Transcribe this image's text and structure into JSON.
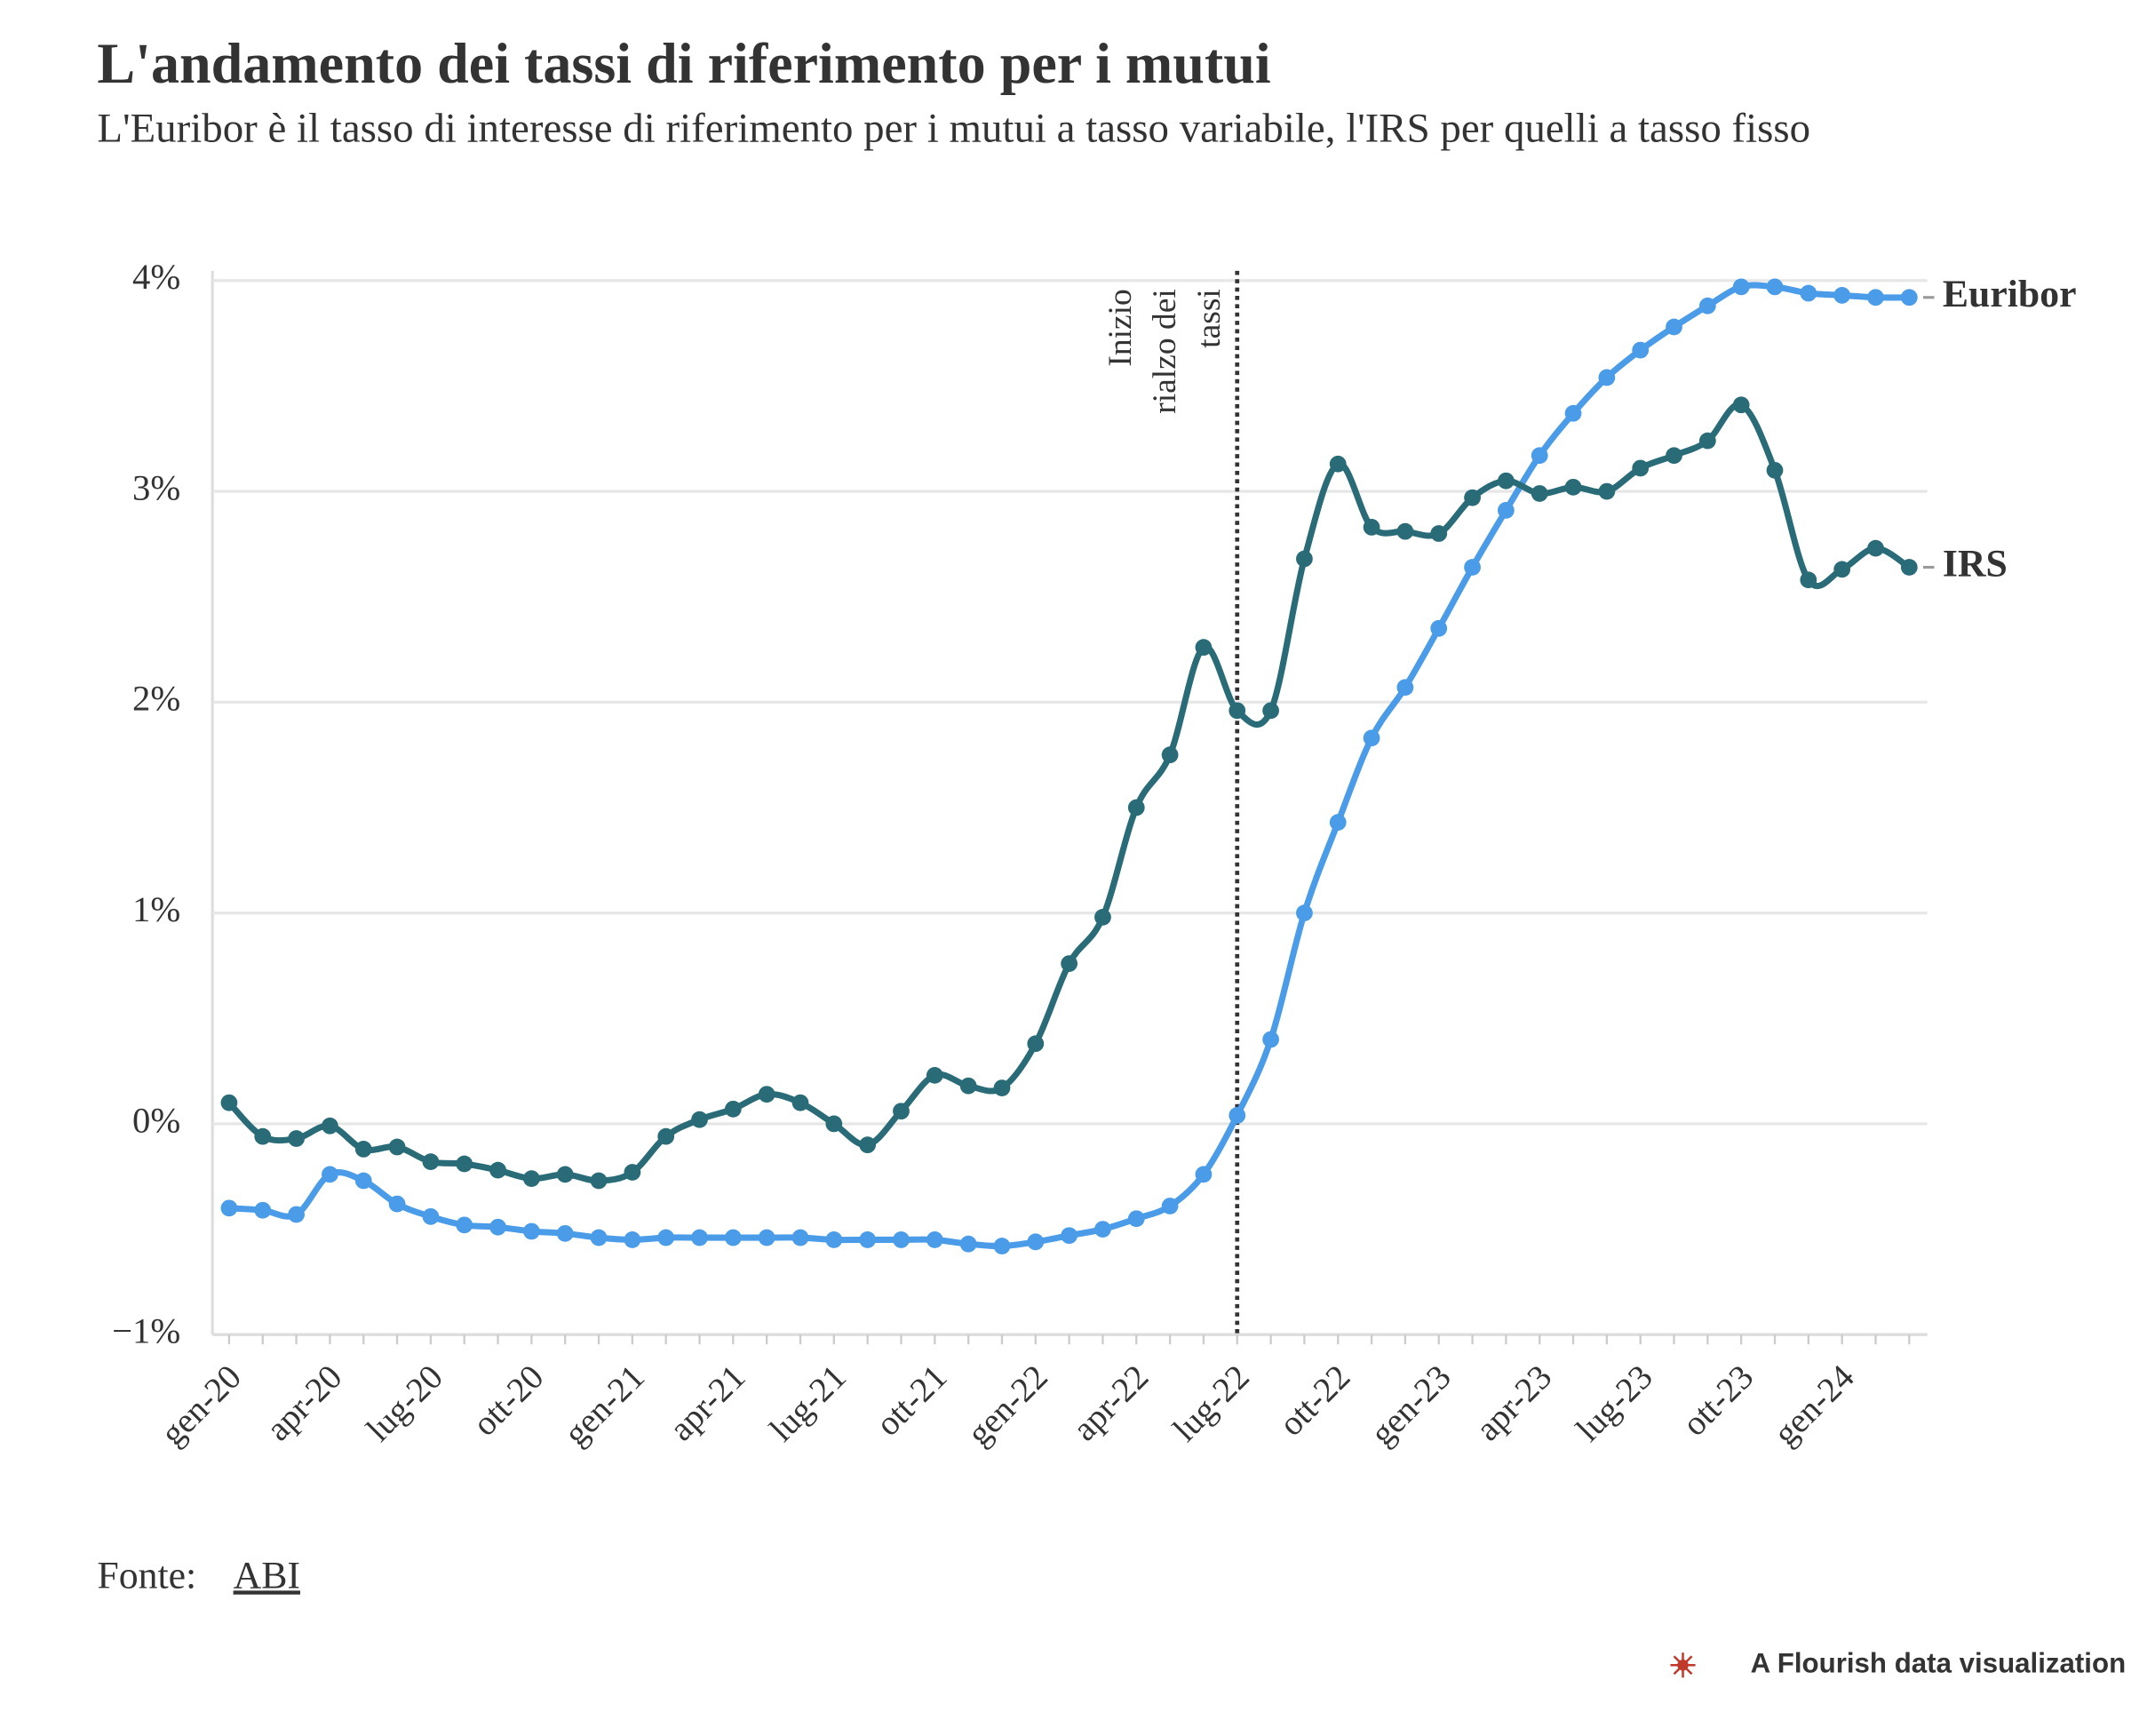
{
  "chart_data": {
    "type": "line",
    "title": "L'andamento dei tassi di riferimento per i mutui",
    "subtitle": "L'Euribor è il tasso di interesse di riferimento per i mutui a tasso variabile, l'IRS per quelli a tasso fisso",
    "categories": [
      "gen-20",
      null,
      null,
      "apr-20",
      null,
      null,
      "lug-20",
      null,
      null,
      "ott-20",
      null,
      null,
      "gen-21",
      null,
      null,
      "apr-21",
      null,
      null,
      "lug-21",
      null,
      null,
      "ott-21",
      null,
      null,
      "gen-22",
      null,
      null,
      "apr-22",
      null,
      null,
      "lug-22",
      null,
      null,
      "ott-22",
      null,
      null,
      "gen-23",
      null,
      null,
      "apr-23",
      null,
      null,
      "lug-23",
      null,
      null,
      "ott-23",
      null,
      null,
      "gen-24",
      null,
      null
    ],
    "series": [
      {
        "name": "Euribor",
        "color": "#4a9be8",
        "values": [
          -0.4,
          -0.41,
          -0.43,
          -0.24,
          -0.27,
          -0.38,
          -0.44,
          -0.48,
          -0.49,
          -0.51,
          -0.52,
          -0.54,
          -0.55,
          -0.54,
          -0.54,
          -0.54,
          -0.54,
          -0.54,
          -0.55,
          -0.55,
          -0.55,
          -0.55,
          -0.57,
          -0.58,
          -0.56,
          -0.53,
          -0.5,
          -0.45,
          -0.39,
          -0.24,
          0.04,
          0.4,
          1.0,
          1.43,
          1.83,
          2.07,
          2.35,
          2.64,
          2.91,
          3.17,
          3.37,
          3.54,
          3.67,
          3.78,
          3.88,
          3.97,
          3.97,
          3.94,
          3.93,
          3.92,
          3.92
        ]
      },
      {
        "name": "IRS",
        "color": "#2a6b78",
        "values": [
          0.1,
          -0.06,
          -0.07,
          -0.01,
          -0.12,
          -0.11,
          -0.18,
          -0.19,
          -0.22,
          -0.26,
          -0.24,
          -0.27,
          -0.23,
          -0.06,
          0.02,
          0.07,
          0.14,
          0.1,
          0.0,
          -0.1,
          0.06,
          0.23,
          0.18,
          0.17,
          0.38,
          0.76,
          0.98,
          1.5,
          1.75,
          2.26,
          1.96,
          1.96,
          2.68,
          3.13,
          2.83,
          2.81,
          2.8,
          2.97,
          3.05,
          2.99,
          3.02,
          3.0,
          3.11,
          3.17,
          3.24,
          3.41,
          3.1,
          2.58,
          2.63,
          2.73,
          2.64
        ]
      }
    ],
    "ylim": [
      -1,
      4
    ],
    "yticks": [
      {
        "value": -1,
        "label": "−1%"
      },
      {
        "value": 0,
        "label": "0%"
      },
      {
        "value": 1,
        "label": "1%"
      },
      {
        "value": 2,
        "label": "2%"
      },
      {
        "value": 3,
        "label": "3%"
      },
      {
        "value": 4,
        "label": "4%"
      }
    ],
    "grid": true,
    "annotation": {
      "x": "lug-22",
      "lines": [
        "Inizio",
        "rialzo dei",
        "tassi"
      ]
    },
    "source_label": "Fonte:",
    "source": "ABI",
    "credit": "A Flourish data visualization"
  }
}
